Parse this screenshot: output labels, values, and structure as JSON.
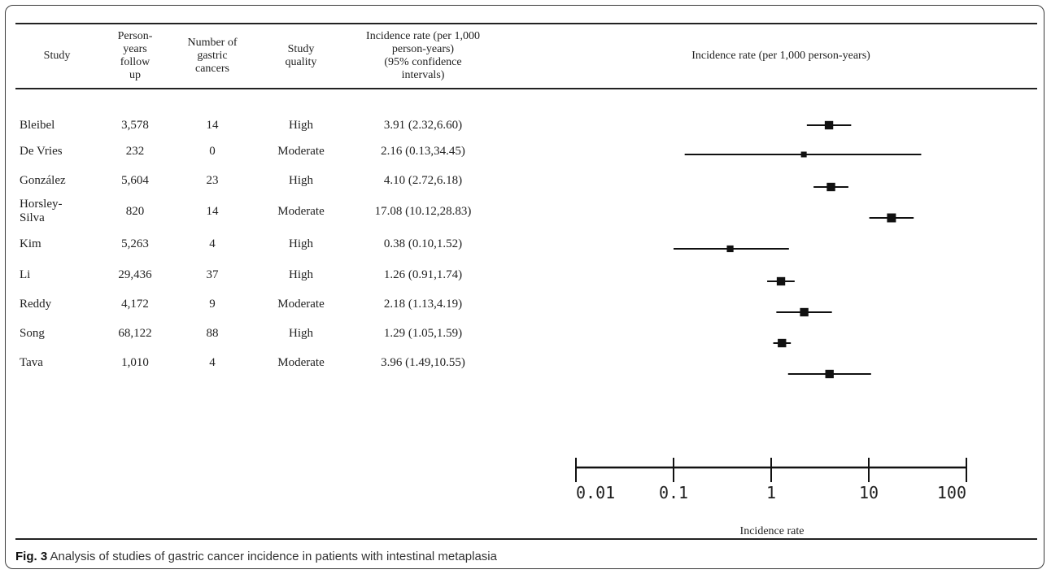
{
  "header": {
    "study": "Study",
    "person_years": "Person-\nyears\nfollow\nup",
    "num_cancers": "Number of\ngastric\ncancers",
    "quality": "Study\nquality",
    "rate_ci": "Incidence rate (per 1,000\nperson-years)\n(95% confidence\nintervals)",
    "plot_title": "Incidence rate (per 1,000 person-years)"
  },
  "rows": [
    {
      "study": "Bleibel",
      "person_years": "3,578",
      "cancers": "14",
      "quality": "High",
      "rate_text": "3.91 (2.32,6.60)"
    },
    {
      "study": "De Vries",
      "person_years": "232",
      "cancers": "0",
      "quality": "Moderate",
      "rate_text": "2.16 (0.13,34.45)"
    },
    {
      "study": "González",
      "person_years": "5,604",
      "cancers": "23",
      "quality": "High",
      "rate_text": "4.10 (2.72,6.18)"
    },
    {
      "study": "Horsley-\nSilva",
      "person_years": "820",
      "cancers": "14",
      "quality": "Moderate",
      "rate_text": "17.08 (10.12,28.83)"
    },
    {
      "study": "Kim",
      "person_years": "5,263",
      "cancers": "4",
      "quality": "High",
      "rate_text": "0.38 (0.10,1.52)"
    },
    {
      "study": "Li",
      "person_years": "29,436",
      "cancers": "37",
      "quality": "High",
      "rate_text": "1.26 (0.91,1.74)"
    },
    {
      "study": "Reddy",
      "person_years": "4,172",
      "cancers": "9",
      "quality": "Moderate",
      "rate_text": "2.18 (1.13,4.19)"
    },
    {
      "study": "Song",
      "person_years": "68,122",
      "cancers": "88",
      "quality": "High",
      "rate_text": "1.29 (1.05,1.59)"
    },
    {
      "study": "Tava",
      "person_years": "1,010",
      "cancers": "4",
      "quality": "Moderate",
      "rate_text": "3.96 (1.49,10.55)"
    }
  ],
  "chart_data": {
    "type": "forest",
    "x_scale": "log",
    "xlim": [
      0.01,
      100
    ],
    "ticks": [
      0.01,
      0.1,
      1,
      10,
      100
    ],
    "tick_labels": [
      "0.01",
      "0.1",
      "1",
      "10",
      "100"
    ],
    "xlabel": "Incidence rate",
    "title": "Incidence rate (per 1,000 person-years)",
    "categories": [
      "Bleibel",
      "De Vries",
      "González",
      "Horsley-Silva",
      "Kim",
      "Li",
      "Reddy",
      "Song",
      "Tava"
    ],
    "estimates": [
      3.91,
      2.16,
      4.1,
      17.08,
      0.38,
      1.26,
      2.18,
      1.29,
      3.96
    ],
    "lower": [
      2.32,
      0.13,
      2.72,
      10.12,
      0.1,
      0.91,
      1.13,
      1.05,
      1.49
    ],
    "upper": [
      6.6,
      34.45,
      6.18,
      28.83,
      1.52,
      1.74,
      4.19,
      1.59,
      10.55
    ],
    "marker_size_rel": [
      0.53,
      0.25,
      0.53,
      0.58,
      0.35,
      0.53,
      0.53,
      0.53,
      0.53
    ],
    "color": "#111111"
  },
  "caption": {
    "label": "Fig. 3",
    "text": " Analysis of studies of gastric cancer incidence in patients with intestinal metaplasia"
  }
}
